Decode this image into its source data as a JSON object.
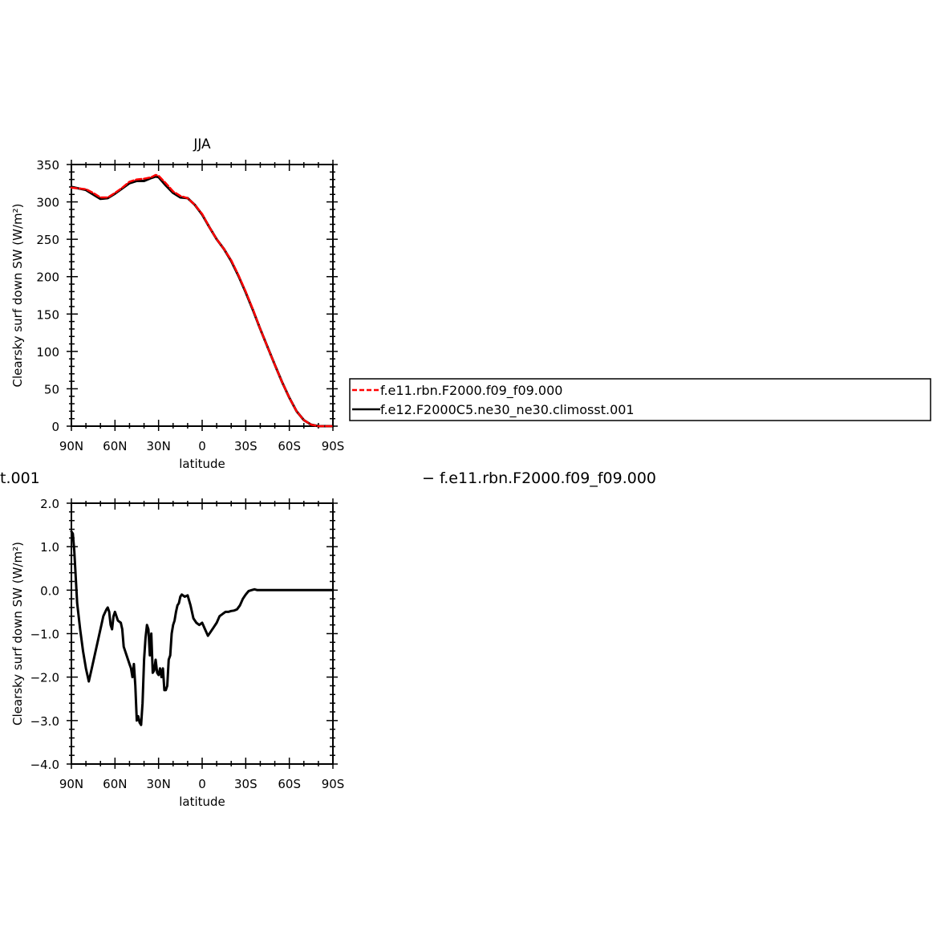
{
  "season": "JJA",
  "diff_title": {
    "left_fragment": "t.001",
    "right": "− f.e11.rbn.F2000.f09_f09.000"
  },
  "legend": {
    "items": [
      {
        "label": "f.e11.rbn.F2000.f09_f09.000",
        "color": "#ff0000",
        "dash": true
      },
      {
        "label": "f.e12.F2000C5.ne30_ne30.climosst.001",
        "color": "#000000",
        "dash": false
      }
    ]
  },
  "chart_data": [
    {
      "type": "line",
      "title": "JJA",
      "xlabel": "latitude",
      "ylabel": "Clearsky surf down SW (W/m²)",
      "xlim": [
        90,
        -90
      ],
      "ylim": [
        0,
        350
      ],
      "xticks": [
        {
          "v": 90,
          "label": "90N"
        },
        {
          "v": 60,
          "label": "60N"
        },
        {
          "v": 30,
          "label": "30N"
        },
        {
          "v": 0,
          "label": "0"
        },
        {
          "v": -30,
          "label": "30S"
        },
        {
          "v": -60,
          "label": "60S"
        },
        {
          "v": -90,
          "label": "90S"
        }
      ],
      "yticks": [
        {
          "v": 0,
          "label": "0"
        },
        {
          "v": 50,
          "label": "50"
        },
        {
          "v": 100,
          "label": "100"
        },
        {
          "v": 150,
          "label": "150"
        },
        {
          "v": 200,
          "label": "200"
        },
        {
          "v": 250,
          "label": "250"
        },
        {
          "v": 300,
          "label": "300"
        },
        {
          "v": 350,
          "label": "350"
        }
      ],
      "series": [
        {
          "name": "f.e12.F2000C5.ne30_ne30.climosst.001",
          "color": "#000000",
          "dash": false,
          "x": [
            90,
            85,
            80,
            75,
            70,
            65,
            60,
            55,
            50,
            45,
            40,
            35,
            32,
            30,
            25,
            20,
            15,
            10,
            5,
            0,
            -5,
            -10,
            -15,
            -20,
            -25,
            -30,
            -35,
            -40,
            -45,
            -50,
            -55,
            -60,
            -65,
            -70,
            -75,
            -80,
            -85,
            -90
          ],
          "y": [
            320,
            318,
            316,
            310,
            304,
            305,
            311,
            318,
            325,
            328,
            328,
            332,
            334,
            333,
            322,
            312,
            306,
            305,
            296,
            283,
            266,
            250,
            237,
            221,
            201,
            179,
            155,
            130,
            106,
            82,
            59,
            38,
            20,
            8,
            2,
            0,
            0,
            0
          ]
        },
        {
          "name": "f.e11.rbn.F2000.f09_f09.000",
          "color": "#ff0000",
          "dash": true,
          "x": [
            90,
            85,
            80,
            75,
            70,
            65,
            60,
            55,
            50,
            45,
            40,
            35,
            32,
            30,
            25,
            20,
            15,
            10,
            5,
            0,
            -5,
            -10,
            -15,
            -20,
            -25,
            -30,
            -35,
            -40,
            -45,
            -50,
            -55,
            -60,
            -65,
            -70,
            -75,
            -80,
            -85,
            -90
          ],
          "y": [
            319,
            318,
            317,
            312,
            306,
            306,
            312,
            319,
            327,
            330,
            331,
            333,
            336,
            335,
            325,
            314,
            308,
            305,
            296,
            284,
            266,
            250,
            237,
            222,
            202,
            180,
            156,
            130,
            106,
            82,
            59,
            38,
            20,
            8,
            2,
            0,
            0,
            0
          ]
        }
      ]
    },
    {
      "type": "line",
      "title": "",
      "xlabel": "latitude",
      "ylabel": "Clearsky surf down SW (W/m²)",
      "xlim": [
        90,
        -90
      ],
      "ylim": [
        -4.0,
        2.0
      ],
      "xticks": [
        {
          "v": 90,
          "label": "90N"
        },
        {
          "v": 60,
          "label": "60N"
        },
        {
          "v": 30,
          "label": "30N"
        },
        {
          "v": 0,
          "label": "0"
        },
        {
          "v": -30,
          "label": "30S"
        },
        {
          "v": -60,
          "label": "60S"
        },
        {
          "v": -90,
          "label": "90S"
        }
      ],
      "yticks": [
        {
          "v": 2.0,
          "label": "2.0"
        },
        {
          "v": 1.0,
          "label": "1.0"
        },
        {
          "v": 0.0,
          "label": "0.0"
        },
        {
          "v": -1.0,
          "label": "−1.0"
        },
        {
          "v": -2.0,
          "label": "−2.0"
        },
        {
          "v": -3.0,
          "label": "−3.0"
        },
        {
          "v": -4.0,
          "label": "−4.0"
        }
      ],
      "series": [
        {
          "color": "#000000",
          "dash": false,
          "x": [
            90,
            89,
            88,
            86,
            84,
            82,
            80,
            78,
            76,
            74,
            72,
            70,
            68,
            66,
            65,
            64,
            63,
            62,
            61,
            60,
            58,
            56,
            55,
            54,
            53,
            52,
            51,
            50,
            49,
            48,
            47,
            46,
            45,
            44,
            43,
            42,
            41,
            40,
            39,
            38,
            37,
            36,
            35,
            34,
            33,
            32,
            31,
            30,
            29,
            28,
            27,
            26,
            25,
            24,
            23,
            22,
            21,
            20,
            19,
            18,
            17,
            16,
            15,
            14,
            12,
            10,
            8,
            6,
            4,
            2,
            0,
            -2,
            -4,
            -6,
            -8,
            -10,
            -12,
            -14,
            -16,
            -18,
            -20,
            -22,
            -24,
            -26,
            -28,
            -30,
            -32,
            -34,
            -36,
            -38,
            -40,
            -45,
            -50,
            -55,
            -60,
            -65,
            -70,
            -75,
            -80,
            -90
          ],
          "y": [
            1.35,
            1.3,
            0.9,
            -0.3,
            -0.9,
            -1.4,
            -1.8,
            -2.1,
            -1.8,
            -1.5,
            -1.2,
            -0.9,
            -0.6,
            -0.45,
            -0.4,
            -0.5,
            -0.8,
            -0.9,
            -0.6,
            -0.5,
            -0.7,
            -0.75,
            -0.9,
            -1.3,
            -1.4,
            -1.5,
            -1.6,
            -1.7,
            -1.8,
            -2.0,
            -1.7,
            -2.2,
            -3.0,
            -2.9,
            -3.05,
            -3.1,
            -2.6,
            -1.6,
            -1.1,
            -0.8,
            -0.9,
            -1.5,
            -1.0,
            -1.9,
            -1.85,
            -1.6,
            -1.9,
            -1.95,
            -1.8,
            -2.0,
            -1.8,
            -2.3,
            -2.3,
            -2.2,
            -1.6,
            -1.5,
            -1.0,
            -0.8,
            -0.7,
            -0.5,
            -0.35,
            -0.3,
            -0.15,
            -0.1,
            -0.15,
            -0.12,
            -0.35,
            -0.65,
            -0.75,
            -0.8,
            -0.75,
            -0.9,
            -1.05,
            -0.95,
            -0.85,
            -0.75,
            -0.6,
            -0.55,
            -0.5,
            -0.5,
            -0.48,
            -0.47,
            -0.44,
            -0.35,
            -0.2,
            -0.1,
            -0.02,
            0.0,
            0.02,
            0.0,
            0.0,
            0.0,
            0.0,
            0.0,
            0.0,
            0.0,
            0.0,
            0.0,
            0.0,
            0.0
          ]
        }
      ]
    }
  ]
}
